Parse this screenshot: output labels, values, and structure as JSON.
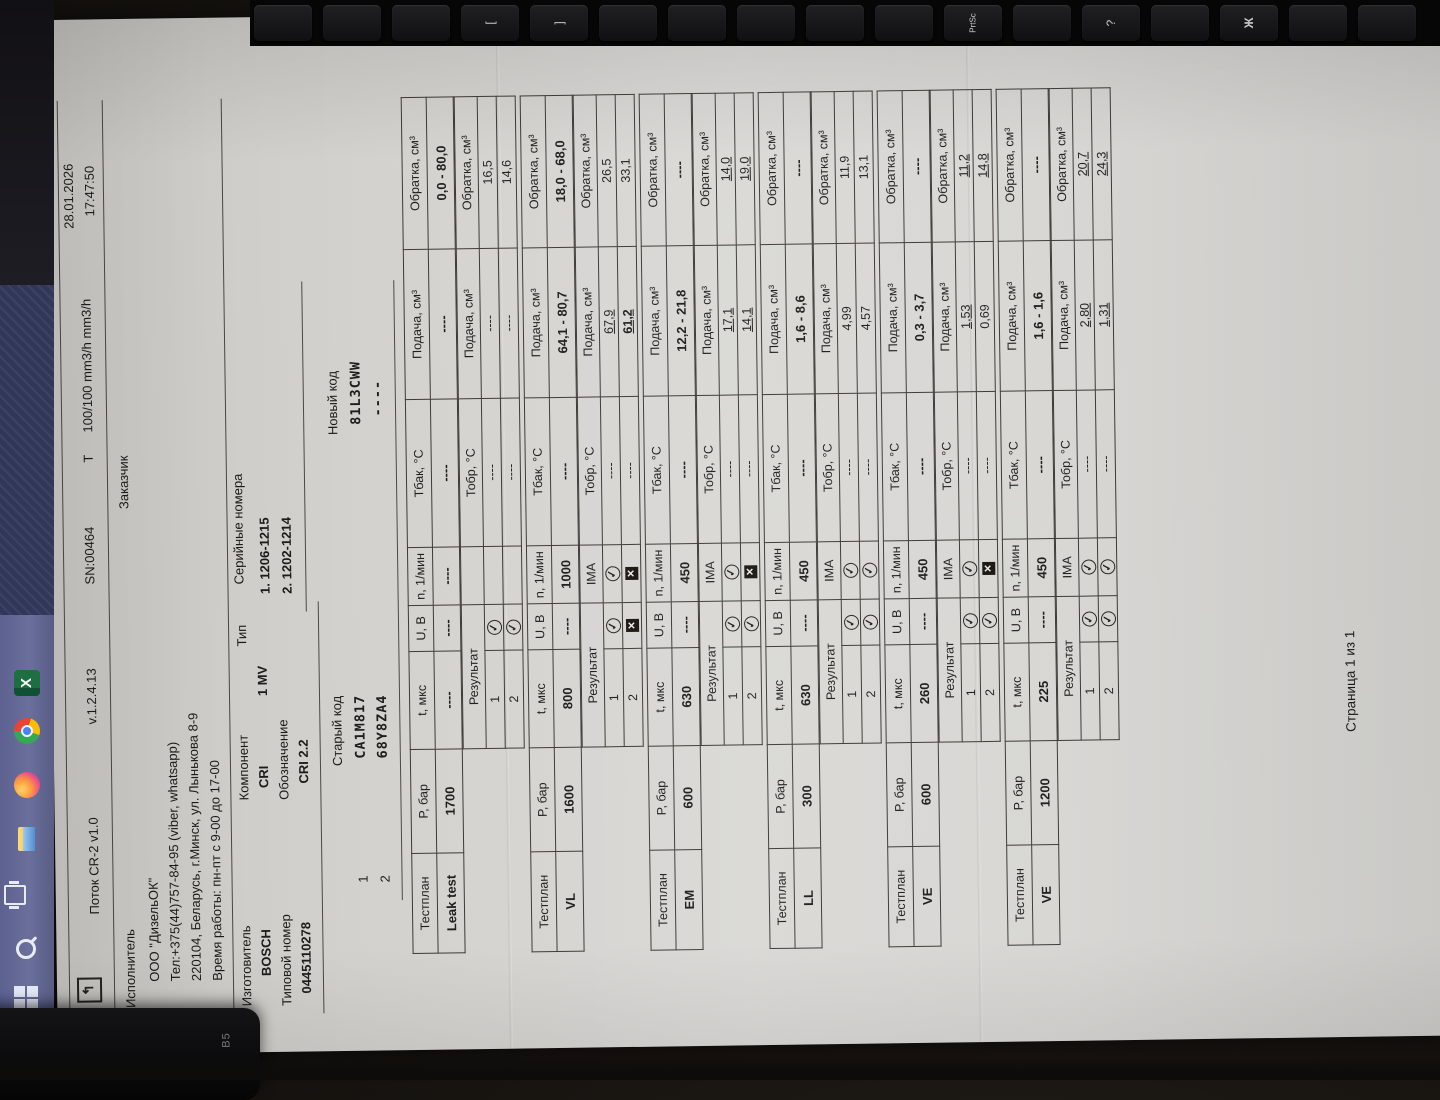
{
  "report": {
    "header": {
      "app_title": "Поток CR-2 v1.0",
      "version": "v.1.2.4.13",
      "serial": "SN:00464",
      "t_label": "T",
      "t_value": "100/100 mm3/h mm3/h",
      "date": "28.01.2026",
      "time": "17:47:50"
    },
    "executor": {
      "label": "Исполнитель",
      "company": "ООО \"ДизельОК\"",
      "phone": "Тел:+375(44)757-84-95 (viber, whatsapp)",
      "address": "220104, Беларусь, г.Минск, ул. Лынькова 8-9",
      "hours": "Время работы: пн-пт с 9-00 до 17-00"
    },
    "customer_label": "Заказчик",
    "component": {
      "manufacturer_label": "Изготовитель",
      "manufacturer": "BOSCH",
      "type_number_label": "Типовой номер",
      "type_number": "0445110278",
      "component_label": "Компонент",
      "component": "CRI",
      "designation_label": "Обозначение",
      "designation": "CRI 2.2",
      "type_label": "Тип",
      "type": "1 MV",
      "serial_label": "Серийные номера",
      "serials": [
        "1.  1206-1215",
        "2.  1202-1214"
      ]
    },
    "codes": {
      "old_label": "Старый код",
      "new_label": "Новый код",
      "rows": [
        {
          "num": "1",
          "old": "CA1M817",
          "new": "81L3CWW"
        },
        {
          "num": "2",
          "old": "68Y8ZA4",
          "new": "----"
        }
      ]
    },
    "columns": {
      "testplan": "Тестплан",
      "p": "P, бар",
      "t": "t, мкс",
      "u": "U, B",
      "n": "n, 1/мин",
      "tbak": "Тбак, °C",
      "podacha": "Подача, см³",
      "obratka": "Обратка, см³",
      "result": "Результат",
      "tobr": "Тобр, °C"
    },
    "tests": [
      {
        "name": "Leak test",
        "p": "1700",
        "t": "----",
        "u": "----",
        "n": "----",
        "tbak": "----",
        "podacha": "----",
        "obratka": "0,0 - 80,0",
        "ima_header": "",
        "rows": [
          {
            "num": "1",
            "result": "check",
            "ima": "none",
            "tobr": "----",
            "podacha": "----",
            "podacha_style": "",
            "obratka": "16,5",
            "obratka_style": ""
          },
          {
            "num": "2",
            "result": "check",
            "ima": "none",
            "tobr": "----",
            "podacha": "----",
            "podacha_style": "",
            "obratka": "14,6",
            "obratka_style": ""
          }
        ]
      },
      {
        "name": "VL",
        "p": "1600",
        "t": "800",
        "u": "----",
        "n": "1000",
        "tbak": "----",
        "podacha": "64,1 - 80,7",
        "obratka": "18,0 - 68,0",
        "ima_header": "IMA",
        "rows": [
          {
            "num": "1",
            "result": "check",
            "ima": "check",
            "tobr": "----",
            "podacha": "67,9",
            "podacha_style": "u",
            "obratka": "26,5",
            "obratka_style": ""
          },
          {
            "num": "2",
            "result": "cross",
            "ima": "cross",
            "tobr": "----",
            "podacha": "61,2",
            "podacha_style": "ub",
            "obratka": "33,1",
            "obratka_style": ""
          }
        ]
      },
      {
        "name": "EM",
        "p": "600",
        "t": "630",
        "u": "----",
        "n": "450",
        "tbak": "----",
        "podacha": "12,2 - 21,8",
        "obratka": "----",
        "ima_header": "IMA",
        "rows": [
          {
            "num": "1",
            "result": "check",
            "ima": "check",
            "tobr": "----",
            "podacha": "17,1",
            "podacha_style": "u",
            "obratka": "14,0",
            "obratka_style": "u"
          },
          {
            "num": "2",
            "result": "check",
            "ima": "cross",
            "tobr": "----",
            "podacha": "14,1",
            "podacha_style": "u",
            "obratka": "19,0",
            "obratka_style": "u"
          }
        ]
      },
      {
        "name": "LL",
        "p": "300",
        "t": "630",
        "u": "----",
        "n": "450",
        "tbak": "----",
        "podacha": "1,6 - 8,6",
        "obratka": "----",
        "ima_header": "IMA",
        "rows": [
          {
            "num": "1",
            "result": "check",
            "ima": "check",
            "tobr": "----",
            "podacha": "4,99",
            "podacha_style": "",
            "obratka": "11,9",
            "obratka_style": ""
          },
          {
            "num": "2",
            "result": "check",
            "ima": "check",
            "tobr": "----",
            "podacha": "4,57",
            "podacha_style": "",
            "obratka": "13,1",
            "obratka_style": ""
          }
        ]
      },
      {
        "name": "VE",
        "p": "600",
        "t": "260",
        "u": "----",
        "n": "450",
        "tbak": "----",
        "podacha": "0,3 - 3,7",
        "obratka": "----",
        "ima_header": "IMA",
        "rows": [
          {
            "num": "1",
            "result": "check",
            "ima": "check",
            "tobr": "----",
            "podacha": "1,53",
            "podacha_style": "u",
            "obratka": "11,2",
            "obratka_style": "u"
          },
          {
            "num": "2",
            "result": "check",
            "ima": "cross",
            "tobr": "----",
            "podacha": "0,69",
            "podacha_style": "",
            "obratka": "14,8",
            "obratka_style": "u"
          }
        ]
      },
      {
        "name": "VE",
        "p": "1200",
        "t": "225",
        "u": "----",
        "n": "450",
        "tbak": "----",
        "podacha": "1,6 - 1,6",
        "obratka": "----",
        "ima_header": "IMA",
        "rows": [
          {
            "num": "1",
            "result": "check",
            "ima": "check",
            "tobr": "----",
            "podacha": "2,80",
            "podacha_style": "u",
            "obratka": "20,7",
            "obratka_style": "u"
          },
          {
            "num": "2",
            "result": "check",
            "ima": "check",
            "tobr": "----",
            "podacha": "1,31",
            "podacha_style": "u",
            "obratka": "24,3",
            "obratka_style": "u"
          }
        ]
      }
    ],
    "footer_page": "Страница 1 из 1"
  },
  "environment": {
    "taskbar_icons": [
      "excel-icon",
      "chrome-icon",
      "firefox-icon",
      "file-explorer-icon",
      "task-view-icon",
      "search-icon",
      "windows-start-icon"
    ],
    "keyboard_keys": [
      "",
      "",
      "",
      "[",
      "]",
      "",
      "",
      "",
      "",
      "",
      "PrtSc",
      "",
      "?",
      "",
      "Ж",
      "",
      ""
    ],
    "laptop_label": "B5"
  }
}
